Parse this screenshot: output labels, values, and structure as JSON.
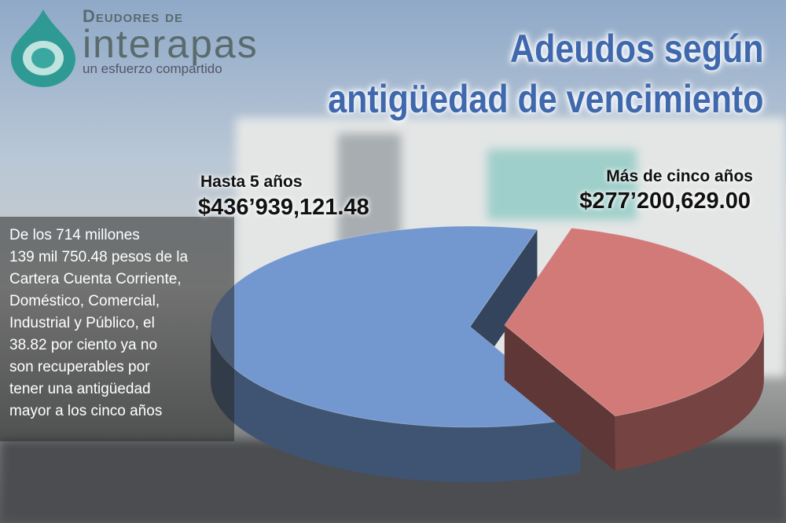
{
  "logo": {
    "kicker": "Deudores de",
    "brand": "interapas",
    "tagline": "un esfuerzo compartido"
  },
  "chart_data": {
    "type": "pie3d",
    "title": [
      "Adeudos según",
      "antigüedad de vencimiento"
    ],
    "categories": [
      "Hasta 5 años",
      "Más de cinco años"
    ],
    "values": [
      436939121.48,
      277200629.0
    ],
    "value_labels": [
      "$436’939,121.48",
      "$277’200,629.00"
    ],
    "colors": [
      "#7398cf",
      "#d27a78"
    ],
    "annotation": [
      "De los 714 millones",
      "139 mil 750.48 pesos de la",
      "Cartera Cuenta Corriente,",
      "Doméstico, Comercial,",
      "Industrial y Público, el",
      "38.82 por ciento ya no",
      "son recuperables por",
      "tener una antigüedad",
      "mayor a los cinco años"
    ]
  }
}
